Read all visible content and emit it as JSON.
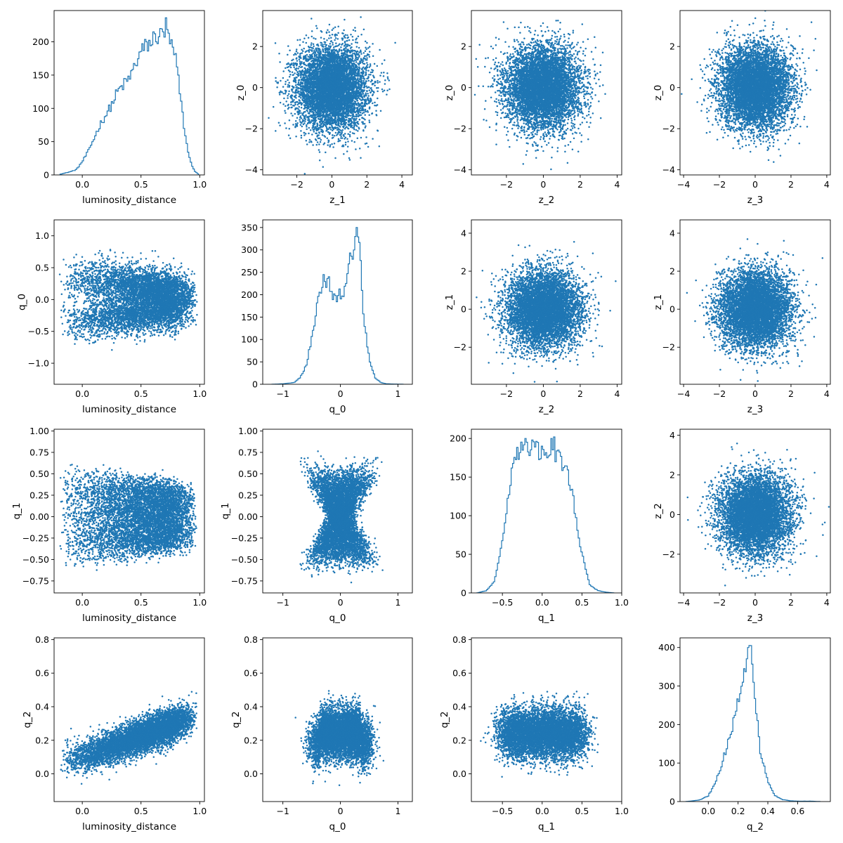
{
  "chart_data": [
    {
      "id": "r0c0",
      "type": "histogram",
      "xlabel": "luminosity_distance",
      "ylabel": "",
      "xlim": [
        -0.24,
        1.04
      ],
      "ylim": [
        0,
        247
      ],
      "xticks": [
        {
          "v": 0.0,
          "t": "0.0"
        },
        {
          "v": 0.5,
          "t": "0.5"
        },
        {
          "v": 1.0,
          "t": "1.0"
        }
      ],
      "yticks": [
        {
          "v": 0,
          "t": "0"
        },
        {
          "v": 50,
          "t": "50"
        },
        {
          "v": 100,
          "t": "100"
        },
        {
          "v": 150,
          "t": "150"
        },
        {
          "v": 200,
          "t": "200"
        }
      ],
      "profile": [
        [
          -0.19,
          1
        ],
        [
          -0.14,
          3
        ],
        [
          -0.1,
          5
        ],
        [
          -0.05,
          8
        ],
        [
          0.0,
          20
        ],
        [
          0.05,
          35
        ],
        [
          0.1,
          55
        ],
        [
          0.15,
          75
        ],
        [
          0.2,
          90
        ],
        [
          0.25,
          105
        ],
        [
          0.3,
          125
        ],
        [
          0.35,
          135
        ],
        [
          0.4,
          145
        ],
        [
          0.45,
          165
        ],
        [
          0.5,
          185
        ],
        [
          0.55,
          195
        ],
        [
          0.6,
          200
        ],
        [
          0.65,
          210
        ],
        [
          0.7,
          215
        ],
        [
          0.75,
          200
        ],
        [
          0.8,
          170
        ],
        [
          0.84,
          110
        ],
        [
          0.88,
          55
        ],
        [
          0.92,
          20
        ],
        [
          0.96,
          5
        ],
        [
          0.99,
          1
        ]
      ],
      "peaks": [
        [
          0.61,
          215
        ],
        [
          0.63,
          200
        ],
        [
          0.66,
          230
        ],
        [
          0.71,
          236
        ],
        [
          0.67,
          220
        ],
        [
          0.55,
          200
        ]
      ]
    },
    {
      "id": "r0c1",
      "type": "scatter",
      "dist": "gauss",
      "xlabel": "z_1",
      "ylabel": "z_0",
      "xlim": [
        -3.95,
        4.6
      ],
      "ylim": [
        -4.25,
        3.75
      ],
      "xticks": [
        {
          "v": -2,
          "t": "−2"
        },
        {
          "v": 0,
          "t": "0"
        },
        {
          "v": 2,
          "t": "2"
        },
        {
          "v": 4,
          "t": "4"
        }
      ],
      "yticks": [
        {
          "v": -4,
          "t": "−4"
        },
        {
          "v": -2,
          "t": "−2"
        },
        {
          "v": 0,
          "t": "0"
        },
        {
          "v": 2,
          "t": "2"
        }
      ]
    },
    {
      "id": "r0c2",
      "type": "scatter",
      "dist": "gauss",
      "xlabel": "z_2",
      "ylabel": "z_0",
      "xlim": [
        -3.9,
        4.25
      ],
      "ylim": [
        -4.25,
        3.75
      ],
      "xticks": [
        {
          "v": -2,
          "t": "−2"
        },
        {
          "v": 0,
          "t": "0"
        },
        {
          "v": 2,
          "t": "2"
        },
        {
          "v": 4,
          "t": "4"
        }
      ],
      "yticks": [
        {
          "v": -4,
          "t": "−4"
        },
        {
          "v": -2,
          "t": "−2"
        },
        {
          "v": 0,
          "t": "0"
        },
        {
          "v": 2,
          "t": "2"
        }
      ]
    },
    {
      "id": "r0c3",
      "type": "scatter",
      "dist": "gauss",
      "xlabel": "z_3",
      "ylabel": "z_0",
      "xlim": [
        -4.2,
        4.2
      ],
      "ylim": [
        -4.25,
        3.75
      ],
      "xticks": [
        {
          "v": -4,
          "t": "−4"
        },
        {
          "v": -2,
          "t": "−2"
        },
        {
          "v": 0,
          "t": "0"
        },
        {
          "v": 2,
          "t": "2"
        },
        {
          "v": 4,
          "t": "4"
        }
      ],
      "yticks": [
        {
          "v": -4,
          "t": "−4"
        },
        {
          "v": -2,
          "t": "−2"
        },
        {
          "v": 0,
          "t": "0"
        },
        {
          "v": 2,
          "t": "2"
        }
      ]
    },
    {
      "id": "r1c0",
      "type": "scatter",
      "dist": "ld_q0",
      "xlabel": "luminosity_distance",
      "ylabel": "q_0",
      "xlim": [
        -0.24,
        1.04
      ],
      "ylim": [
        -1.33,
        1.25
      ],
      "xticks": [
        {
          "v": 0.0,
          "t": "0.0"
        },
        {
          "v": 0.5,
          "t": "0.5"
        },
        {
          "v": 1.0,
          "t": "1.0"
        }
      ],
      "yticks": [
        {
          "v": -1.0,
          "t": "−1.0"
        },
        {
          "v": -0.5,
          "t": "−0.5"
        },
        {
          "v": 0.0,
          "t": "0.0"
        },
        {
          "v": 0.5,
          "t": "0.5"
        },
        {
          "v": 1.0,
          "t": "1.0"
        }
      ]
    },
    {
      "id": "r1c1",
      "type": "histogram",
      "xlabel": "q_0",
      "ylabel": "",
      "xlim": [
        -1.35,
        1.25
      ],
      "ylim": [
        0,
        367
      ],
      "xticks": [
        {
          "v": -1,
          "t": "−1"
        },
        {
          "v": 0,
          "t": "0"
        },
        {
          "v": 1,
          "t": "1"
        }
      ],
      "yticks": [
        {
          "v": 0,
          "t": "0"
        },
        {
          "v": 50,
          "t": "50"
        },
        {
          "v": 100,
          "t": "100"
        },
        {
          "v": 150,
          "t": "150"
        },
        {
          "v": 200,
          "t": "200"
        },
        {
          "v": 250,
          "t": "250"
        },
        {
          "v": 300,
          "t": "300"
        },
        {
          "v": 350,
          "t": "350"
        }
      ],
      "profile": [
        [
          -1.2,
          0
        ],
        [
          -1.0,
          1
        ],
        [
          -0.8,
          4
        ],
        [
          -0.7,
          15
        ],
        [
          -0.6,
          40
        ],
        [
          -0.5,
          100
        ],
        [
          -0.4,
          180
        ],
        [
          -0.3,
          240
        ],
        [
          -0.2,
          220
        ],
        [
          -0.1,
          195
        ],
        [
          0.0,
          200
        ],
        [
          0.05,
          205
        ],
        [
          0.1,
          240
        ],
        [
          0.2,
          290
        ],
        [
          0.3,
          340
        ],
        [
          0.35,
          270
        ],
        [
          0.4,
          160
        ],
        [
          0.5,
          55
        ],
        [
          0.6,
          15
        ],
        [
          0.7,
          4
        ],
        [
          0.8,
          1
        ],
        [
          1.1,
          0
        ]
      ],
      "peaks": [
        [
          0.29,
          350
        ],
        [
          0.26,
          330
        ],
        [
          -0.29,
          245
        ],
        [
          -0.21,
          240
        ]
      ]
    },
    {
      "id": "r1c2",
      "type": "scatter",
      "dist": "gauss",
      "xlabel": "z_2",
      "ylabel": "z_1",
      "xlim": [
        -3.9,
        4.25
      ],
      "ylim": [
        -3.95,
        4.7
      ],
      "xticks": [
        {
          "v": -2,
          "t": "−2"
        },
        {
          "v": 0,
          "t": "0"
        },
        {
          "v": 2,
          "t": "2"
        },
        {
          "v": 4,
          "t": "4"
        }
      ],
      "yticks": [
        {
          "v": -2,
          "t": "−2"
        },
        {
          "v": 0,
          "t": "0"
        },
        {
          "v": 2,
          "t": "2"
        },
        {
          "v": 4,
          "t": "4"
        }
      ]
    },
    {
      "id": "r1c3",
      "type": "scatter",
      "dist": "gauss",
      "xlabel": "z_3",
      "ylabel": "z_1",
      "xlim": [
        -4.2,
        4.2
      ],
      "ylim": [
        -3.95,
        4.7
      ],
      "xticks": [
        {
          "v": -4,
          "t": "−4"
        },
        {
          "v": -2,
          "t": "−2"
        },
        {
          "v": 0,
          "t": "0"
        },
        {
          "v": 2,
          "t": "2"
        },
        {
          "v": 4,
          "t": "4"
        }
      ],
      "yticks": [
        {
          "v": -2,
          "t": "−2"
        },
        {
          "v": 0,
          "t": "0"
        },
        {
          "v": 2,
          "t": "2"
        },
        {
          "v": 4,
          "t": "4"
        }
      ]
    },
    {
      "id": "r2c0",
      "type": "scatter",
      "dist": "ld_q1",
      "xlabel": "luminosity_distance",
      "ylabel": "q_1",
      "xlim": [
        -0.24,
        1.04
      ],
      "ylim": [
        -0.89,
        1.02
      ],
      "xticks": [
        {
          "v": 0.0,
          "t": "0.0"
        },
        {
          "v": 0.5,
          "t": "0.5"
        },
        {
          "v": 1.0,
          "t": "1.0"
        }
      ],
      "yticks": [
        {
          "v": -0.75,
          "t": "−0.75"
        },
        {
          "v": -0.5,
          "t": "−0.50"
        },
        {
          "v": -0.25,
          "t": "−0.25"
        },
        {
          "v": 0.0,
          "t": "0.00"
        },
        {
          "v": 0.25,
          "t": "0.25"
        },
        {
          "v": 0.5,
          "t": "0.50"
        },
        {
          "v": 0.75,
          "t": "0.75"
        },
        {
          "v": 1.0,
          "t": "1.00"
        }
      ]
    },
    {
      "id": "r2c1",
      "type": "scatter",
      "dist": "q0_q1",
      "xlabel": "q_0",
      "ylabel": "q_1",
      "xlim": [
        -1.35,
        1.25
      ],
      "ylim": [
        -0.89,
        1.02
      ],
      "xticks": [
        {
          "v": -1,
          "t": "−1"
        },
        {
          "v": 0,
          "t": "0"
        },
        {
          "v": 1,
          "t": "1"
        }
      ],
      "yticks": [
        {
          "v": -0.75,
          "t": "−0.75"
        },
        {
          "v": -0.5,
          "t": "−0.50"
        },
        {
          "v": -0.25,
          "t": "−0.25"
        },
        {
          "v": 0.0,
          "t": "0.00"
        },
        {
          "v": 0.25,
          "t": "0.25"
        },
        {
          "v": 0.5,
          "t": "0.50"
        },
        {
          "v": 0.75,
          "t": "0.75"
        },
        {
          "v": 1.0,
          "t": "1.00"
        }
      ]
    },
    {
      "id": "r2c2",
      "type": "histogram",
      "xlabel": "q_1",
      "ylabel": "",
      "xlim": [
        -0.89,
        1.0
      ],
      "ylim": [
        0,
        212
      ],
      "xticks": [
        {
          "v": -0.5,
          "t": "−0.5"
        },
        {
          "v": 0.0,
          "t": "0.0"
        },
        {
          "v": 0.5,
          "t": "0.5"
        },
        {
          "v": 1.0,
          "t": "1.0"
        }
      ],
      "yticks": [
        {
          "v": 0,
          "t": "0"
        },
        {
          "v": 50,
          "t": "50"
        },
        {
          "v": 100,
          "t": "100"
        },
        {
          "v": 150,
          "t": "150"
        },
        {
          "v": 200,
          "t": "200"
        }
      ],
      "profile": [
        [
          -0.82,
          0
        ],
        [
          -0.7,
          3
        ],
        [
          -0.6,
          15
        ],
        [
          -0.55,
          40
        ],
        [
          -0.5,
          70
        ],
        [
          -0.45,
          110
        ],
        [
          -0.4,
          145
        ],
        [
          -0.35,
          165
        ],
        [
          -0.3,
          180
        ],
        [
          -0.2,
          190
        ],
        [
          -0.1,
          185
        ],
        [
          0.0,
          180
        ],
        [
          0.1,
          185
        ],
        [
          0.2,
          180
        ],
        [
          0.3,
          160
        ],
        [
          0.35,
          140
        ],
        [
          0.4,
          115
        ],
        [
          0.45,
          80
        ],
        [
          0.5,
          50
        ],
        [
          0.55,
          30
        ],
        [
          0.6,
          10
        ],
        [
          0.7,
          3
        ],
        [
          0.8,
          1
        ],
        [
          0.9,
          0
        ]
      ],
      "peaks": [
        [
          -0.21,
          200
        ],
        [
          -0.13,
          198
        ],
        [
          0.12,
          200
        ],
        [
          0.16,
          202
        ],
        [
          -0.05,
          195
        ]
      ]
    },
    {
      "id": "r2c3",
      "type": "scatter",
      "dist": "gauss",
      "xlabel": "z_3",
      "ylabel": "z_2",
      "xlim": [
        -4.2,
        4.2
      ],
      "ylim": [
        -3.95,
        4.3
      ],
      "xticks": [
        {
          "v": -4,
          "t": "−4"
        },
        {
          "v": -2,
          "t": "−2"
        },
        {
          "v": 0,
          "t": "0"
        },
        {
          "v": 2,
          "t": "2"
        },
        {
          "v": 4,
          "t": "4"
        }
      ],
      "yticks": [
        {
          "v": -2,
          "t": "−2"
        },
        {
          "v": 0,
          "t": "0"
        },
        {
          "v": 2,
          "t": "2"
        },
        {
          "v": 4,
          "t": "4"
        }
      ]
    },
    {
      "id": "r3c0",
      "type": "scatter",
      "dist": "ld_q2",
      "xlabel": "luminosity_distance",
      "ylabel": "q_2",
      "xlim": [
        -0.24,
        1.04
      ],
      "ylim": [
        -0.165,
        0.81
      ],
      "xticks": [
        {
          "v": 0.0,
          "t": "0.0"
        },
        {
          "v": 0.5,
          "t": "0.5"
        },
        {
          "v": 1.0,
          "t": "1.0"
        }
      ],
      "yticks": [
        {
          "v": 0.0,
          "t": "0.0"
        },
        {
          "v": 0.2,
          "t": "0.2"
        },
        {
          "v": 0.4,
          "t": "0.4"
        },
        {
          "v": 0.6,
          "t": "0.6"
        },
        {
          "v": 0.8,
          "t": "0.8"
        }
      ]
    },
    {
      "id": "r3c1",
      "type": "scatter",
      "dist": "q0_q2",
      "xlabel": "q_0",
      "ylabel": "q_2",
      "xlim": [
        -1.35,
        1.25
      ],
      "ylim": [
        -0.165,
        0.81
      ],
      "xticks": [
        {
          "v": -1,
          "t": "−1"
        },
        {
          "v": 0,
          "t": "0"
        },
        {
          "v": 1,
          "t": "1"
        }
      ],
      "yticks": [
        {
          "v": 0.0,
          "t": "0.0"
        },
        {
          "v": 0.2,
          "t": "0.2"
        },
        {
          "v": 0.4,
          "t": "0.4"
        },
        {
          "v": 0.6,
          "t": "0.6"
        },
        {
          "v": 0.8,
          "t": "0.8"
        }
      ]
    },
    {
      "id": "r3c2",
      "type": "scatter",
      "dist": "q1_q2",
      "xlabel": "q_1",
      "ylabel": "q_2",
      "xlim": [
        -0.89,
        1.0
      ],
      "ylim": [
        -0.165,
        0.81
      ],
      "xticks": [
        {
          "v": -0.5,
          "t": "−0.5"
        },
        {
          "v": 0.0,
          "t": "0.0"
        },
        {
          "v": 0.5,
          "t": "0.5"
        },
        {
          "v": 1.0,
          "t": "1.0"
        }
      ],
      "yticks": [
        {
          "v": 0.0,
          "t": "0.0"
        },
        {
          "v": 0.2,
          "t": "0.2"
        },
        {
          "v": 0.4,
          "t": "0.4"
        },
        {
          "v": 0.6,
          "t": "0.6"
        },
        {
          "v": 0.8,
          "t": "0.8"
        }
      ]
    },
    {
      "id": "r3c3",
      "type": "histogram",
      "xlabel": "q_2",
      "ylabel": "",
      "xlim": [
        -0.19,
        0.82
      ],
      "ylim": [
        0,
        425
      ],
      "xticks": [
        {
          "v": 0.0,
          "t": "0.0"
        },
        {
          "v": 0.2,
          "t": "0.2"
        },
        {
          "v": 0.4,
          "t": "0.4"
        },
        {
          "v": 0.6,
          "t": "0.6"
        }
      ],
      "yticks": [
        {
          "v": 0,
          "t": "0"
        },
        {
          "v": 100,
          "t": "100"
        },
        {
          "v": 200,
          "t": "200"
        },
        {
          "v": 300,
          "t": "300"
        },
        {
          "v": 400,
          "t": "400"
        }
      ],
      "profile": [
        [
          -0.15,
          0
        ],
        [
          -0.1,
          2
        ],
        [
          -0.05,
          5
        ],
        [
          0.0,
          15
        ],
        [
          0.05,
          50
        ],
        [
          0.1,
          110
        ],
        [
          0.15,
          175
        ],
        [
          0.2,
          260
        ],
        [
          0.25,
          350
        ],
        [
          0.28,
          395
        ],
        [
          0.3,
          340
        ],
        [
          0.32,
          250
        ],
        [
          0.35,
          130
        ],
        [
          0.4,
          50
        ],
        [
          0.45,
          15
        ],
        [
          0.5,
          5
        ],
        [
          0.55,
          2
        ],
        [
          0.6,
          1
        ],
        [
          0.7,
          1
        ],
        [
          0.75,
          0
        ]
      ],
      "peaks": [
        [
          0.29,
          405
        ],
        [
          0.27,
          400
        ]
      ]
    }
  ]
}
